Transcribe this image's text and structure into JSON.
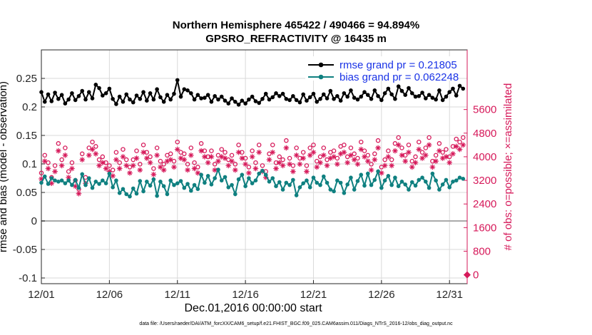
{
  "chart_data": {
    "type": "line",
    "title": "Northern Hemisphere 465422 / 490466 = 94.894%",
    "subtitle": "GPSRO_REFRACTIVITY @ 16435 m",
    "xlabel": "Dec.01,2016 00:00:00 start",
    "ylabel": "rmse and bias (model - observation)",
    "y2label": "# of obs: o=possible; ×=assimilated",
    "footer": "data file: /Users/raeder/DAI/ATM_forcXX/CAM6_setup/f.e21.FHIST_BGC.f09_025.CAM6assim.011/Diags_NTrS_2016-12/obs_diag_output.nc",
    "xlim": [
      0,
      31.3
    ],
    "ylim": [
      -0.11,
      0.3
    ],
    "y2lim": [
      -300,
      7620
    ],
    "xticks": [
      0,
      5,
      10,
      15,
      20,
      25,
      30
    ],
    "xtick_labels": [
      "12/01",
      "12/06",
      "12/11",
      "12/16",
      "12/21",
      "12/26",
      "12/31"
    ],
    "yticks": [
      -0.1,
      -0.05,
      0,
      0.05,
      0.1,
      0.15,
      0.2,
      0.25
    ],
    "ytick_labels": [
      "-0.1",
      "-0.05",
      "0",
      "0.05",
      "0.1",
      "0.15",
      "0.2",
      "0.25"
    ],
    "y2ticks": [
      0,
      800,
      1600,
      2400,
      3200,
      4000,
      4800,
      5600
    ],
    "y2tick_labels": [
      "0",
      "800",
      "1600",
      "2400",
      "3200",
      "4000",
      "4800",
      "5600"
    ],
    "grid": true,
    "legend_position": "top-right",
    "colors": {
      "rmse": "#000000",
      "bias": "#0f8080",
      "obs": "#d6195a",
      "zero_line": "#aaaaaa",
      "legend_text": "#1a33e6"
    },
    "series": [
      {
        "name": "rmse",
        "label": "rmse grand pr = 0.21805",
        "x": [
          0.0,
          0.25,
          0.5,
          0.75,
          1.0,
          1.25,
          1.5,
          1.75,
          2.0,
          2.25,
          2.5,
          2.75,
          3.0,
          3.25,
          3.5,
          3.75,
          4.0,
          4.25,
          4.5,
          4.75,
          5.0,
          5.25,
          5.5,
          5.75,
          6.0,
          6.25,
          6.5,
          6.75,
          7.0,
          7.25,
          7.5,
          7.75,
          8.0,
          8.25,
          8.5,
          8.75,
          9.0,
          9.25,
          9.5,
          9.75,
          10.0,
          10.25,
          10.5,
          10.75,
          11.0,
          11.25,
          11.5,
          11.75,
          12.0,
          12.25,
          12.5,
          12.75,
          13.0,
          13.25,
          13.5,
          13.75,
          14.0,
          14.25,
          14.5,
          14.75,
          15.0,
          15.25,
          15.5,
          15.75,
          16.0,
          16.25,
          16.5,
          16.75,
          17.0,
          17.25,
          17.5,
          17.75,
          18.0,
          18.25,
          18.5,
          18.75,
          19.0,
          19.25,
          19.5,
          19.75,
          20.0,
          20.25,
          20.5,
          20.75,
          21.0,
          21.25,
          21.5,
          21.75,
          22.0,
          22.25,
          22.5,
          22.75,
          23.0,
          23.25,
          23.5,
          23.75,
          24.0,
          24.25,
          24.5,
          24.75,
          25.0,
          25.25,
          25.5,
          25.75,
          26.0,
          26.25,
          26.5,
          26.75,
          27.0,
          27.25,
          27.5,
          27.75,
          28.0,
          28.25,
          28.5,
          28.75,
          29.0,
          29.25,
          29.5,
          29.75,
          30.0,
          30.25,
          30.5,
          30.75,
          31.0
        ],
        "values": [
          0.226,
          0.209,
          0.222,
          0.21,
          0.225,
          0.214,
          0.221,
          0.206,
          0.213,
          0.224,
          0.212,
          0.219,
          0.228,
          0.213,
          0.226,
          0.215,
          0.239,
          0.233,
          0.22,
          0.224,
          0.232,
          0.214,
          0.205,
          0.218,
          0.209,
          0.222,
          0.213,
          0.208,
          0.22,
          0.214,
          0.226,
          0.211,
          0.224,
          0.213,
          0.231,
          0.217,
          0.209,
          0.221,
          0.213,
          0.223,
          0.247,
          0.218,
          0.231,
          0.229,
          0.224,
          0.213,
          0.221,
          0.215,
          0.216,
          0.221,
          0.209,
          0.219,
          0.213,
          0.218,
          0.211,
          0.206,
          0.215,
          0.209,
          0.204,
          0.211,
          0.206,
          0.213,
          0.218,
          0.21,
          0.207,
          0.214,
          0.223,
          0.213,
          0.217,
          0.224,
          0.219,
          0.223,
          0.214,
          0.212,
          0.219,
          0.212,
          0.208,
          0.222,
          0.211,
          0.217,
          0.223,
          0.209,
          0.214,
          0.222,
          0.215,
          0.228,
          0.214,
          0.219,
          0.211,
          0.224,
          0.218,
          0.229,
          0.216,
          0.213,
          0.218,
          0.226,
          0.221,
          0.214,
          0.229,
          0.219,
          0.212,
          0.224,
          0.232,
          0.222,
          0.214,
          0.236,
          0.228,
          0.221,
          0.233,
          0.224,
          0.218,
          0.219,
          0.225,
          0.215,
          0.221,
          0.216,
          0.213,
          0.229,
          0.212,
          0.218,
          0.226,
          0.232,
          0.22,
          0.237,
          0.232
        ]
      },
      {
        "name": "bias",
        "label": "bias grand pr = 0.062248",
        "x": [
          0.0,
          0.25,
          0.5,
          0.75,
          1.0,
          1.25,
          1.5,
          1.75,
          2.0,
          2.25,
          2.5,
          2.75,
          3.0,
          3.25,
          3.5,
          3.75,
          4.0,
          4.25,
          4.5,
          4.75,
          5.0,
          5.25,
          5.5,
          5.75,
          6.0,
          6.25,
          6.5,
          6.75,
          7.0,
          7.25,
          7.5,
          7.75,
          8.0,
          8.25,
          8.5,
          8.75,
          9.0,
          9.25,
          9.5,
          9.75,
          10.0,
          10.25,
          10.5,
          10.75,
          11.0,
          11.25,
          11.5,
          11.75,
          12.0,
          12.25,
          12.5,
          12.75,
          13.0,
          13.25,
          13.5,
          13.75,
          14.0,
          14.25,
          14.5,
          14.75,
          15.0,
          15.25,
          15.5,
          15.75,
          16.0,
          16.25,
          16.5,
          16.75,
          17.0,
          17.25,
          17.5,
          17.75,
          18.0,
          18.25,
          18.5,
          18.75,
          19.0,
          19.25,
          19.5,
          19.75,
          20.0,
          20.25,
          20.5,
          20.75,
          21.0,
          21.25,
          21.5,
          21.75,
          22.0,
          22.25,
          22.5,
          22.75,
          23.0,
          23.25,
          23.5,
          23.75,
          24.0,
          24.25,
          24.5,
          24.75,
          25.0,
          25.25,
          25.5,
          25.75,
          26.0,
          26.25,
          26.5,
          26.75,
          27.0,
          27.25,
          27.5,
          27.75,
          28.0,
          28.25,
          28.5,
          28.75,
          29.0,
          29.25,
          29.5,
          29.75,
          30.0,
          30.25,
          30.5,
          30.75,
          31.0
        ],
        "values": [
          0.067,
          0.078,
          0.065,
          0.075,
          0.071,
          0.069,
          0.071,
          0.066,
          0.071,
          0.063,
          0.072,
          0.058,
          0.082,
          0.063,
          0.075,
          0.058,
          0.069,
          0.065,
          0.071,
          0.066,
          0.083,
          0.059,
          0.071,
          0.049,
          0.056,
          0.047,
          0.043,
          0.057,
          0.048,
          0.07,
          0.052,
          0.069,
          0.062,
          0.073,
          0.044,
          0.069,
          0.061,
          0.047,
          0.071,
          0.063,
          0.066,
          0.07,
          0.058,
          0.065,
          0.053,
          0.063,
          0.056,
          0.081,
          0.067,
          0.079,
          0.064,
          0.075,
          0.09,
          0.071,
          0.077,
          0.059,
          0.063,
          0.047,
          0.073,
          0.081,
          0.061,
          0.075,
          0.066,
          0.071,
          0.083,
          0.088,
          0.081,
          0.069,
          0.075,
          0.061,
          0.068,
          0.055,
          0.067,
          0.063,
          0.072,
          0.045,
          0.059,
          0.066,
          0.071,
          0.059,
          0.076,
          0.067,
          0.063,
          0.078,
          0.067,
          0.055,
          0.052,
          0.071,
          0.067,
          0.049,
          0.064,
          0.076,
          0.055,
          0.07,
          0.081,
          0.062,
          0.083,
          0.063,
          0.072,
          0.087,
          0.058,
          0.071,
          0.079,
          0.063,
          0.076,
          0.061,
          0.069,
          0.064,
          0.055,
          0.068,
          0.062,
          0.072,
          0.076,
          0.069,
          0.058,
          0.083,
          0.071,
          0.055,
          0.064,
          0.072,
          0.059,
          0.069,
          0.071,
          0.076,
          0.074
        ]
      },
      {
        "name": "nposs",
        "label": "possible (o)",
        "axis": "right",
        "x": [
          0.0,
          0.25,
          0.5,
          0.75,
          1.0,
          1.25,
          1.5,
          1.75,
          2.0,
          2.25,
          2.5,
          2.75,
          3.0,
          3.25,
          3.5,
          3.75,
          4.0,
          4.25,
          4.5,
          4.75,
          5.0,
          5.25,
          5.5,
          5.75,
          6.0,
          6.25,
          6.5,
          6.75,
          7.0,
          7.25,
          7.5,
          7.75,
          8.0,
          8.25,
          8.5,
          8.75,
          9.0,
          9.25,
          9.5,
          9.75,
          10.0,
          10.25,
          10.5,
          10.75,
          11.0,
          11.25,
          11.5,
          11.75,
          12.0,
          12.25,
          12.5,
          12.75,
          13.0,
          13.25,
          13.5,
          13.75,
          14.0,
          14.25,
          14.5,
          14.75,
          15.0,
          15.25,
          15.5,
          15.75,
          16.0,
          16.25,
          16.5,
          16.75,
          17.0,
          17.25,
          17.5,
          17.75,
          18.0,
          18.25,
          18.5,
          18.75,
          19.0,
          19.25,
          19.5,
          19.75,
          20.0,
          20.25,
          20.5,
          20.75,
          21.0,
          21.25,
          21.5,
          21.75,
          22.0,
          22.25,
          22.5,
          22.75,
          23.0,
          23.25,
          23.5,
          23.75,
          24.0,
          24.25,
          24.5,
          24.75,
          25.0,
          25.25,
          25.5,
          25.75,
          26.0,
          26.25,
          26.5,
          26.75,
          27.0,
          27.25,
          27.5,
          27.75,
          28.0,
          28.25,
          28.5,
          28.75,
          29.0,
          29.25,
          29.5,
          29.75,
          30.0,
          30.25,
          30.5,
          30.75,
          31.0
        ],
        "values": [
          3450,
          4050,
          3800,
          3300,
          3700,
          4450,
          3900,
          4300,
          3500,
          3800,
          3200,
          2900,
          4100,
          3300,
          4300,
          4500,
          4350,
          3900,
          4000,
          3800,
          3700,
          3550,
          4150,
          3800,
          4250,
          3900,
          3650,
          3900,
          4200,
          3750,
          4400,
          4150,
          4000,
          3600,
          4300,
          3850,
          3750,
          4050,
          4100,
          3850,
          4500,
          4150,
          4100,
          3750,
          4300,
          3800,
          3650,
          4450,
          4200,
          4000,
          4200,
          3750,
          4050,
          4250,
          4150,
          3900,
          4050,
          3750,
          4400,
          4150,
          3950,
          3650,
          4200,
          3800,
          4400,
          3700,
          3500,
          4100,
          4400,
          3800,
          4000,
          3900,
          4550,
          3950,
          3700,
          4300,
          3950,
          4150,
          3700,
          4300,
          4400,
          3850,
          4000,
          4300,
          3900,
          4150,
          4200,
          3950,
          4350,
          4400,
          4000,
          4300,
          4100,
          3950,
          4500,
          4200,
          4050,
          3750,
          4100,
          4550,
          3650,
          3900,
          4200,
          3900,
          4450,
          4650,
          4300,
          4050,
          4400,
          3850,
          4000,
          4500,
          4150,
          4300,
          4650,
          3850,
          4050,
          4450,
          4150,
          4250,
          4000,
          4350,
          4600,
          4500,
          4650
        ]
      },
      {
        "name": "nused",
        "label": "assimilated (×)",
        "axis": "right",
        "x": [
          0.0,
          0.25,
          0.5,
          0.75,
          1.0,
          1.25,
          1.5,
          1.75,
          2.0,
          2.25,
          2.5,
          2.75,
          3.0,
          3.25,
          3.5,
          3.75,
          4.0,
          4.25,
          4.5,
          4.75,
          5.0,
          5.25,
          5.5,
          5.75,
          6.0,
          6.25,
          6.5,
          6.75,
          7.0,
          7.25,
          7.5,
          7.75,
          8.0,
          8.25,
          8.5,
          8.75,
          9.0,
          9.25,
          9.5,
          9.75,
          10.0,
          10.25,
          10.5,
          10.75,
          11.0,
          11.25,
          11.5,
          11.75,
          12.0,
          12.25,
          12.5,
          12.75,
          13.0,
          13.25,
          13.5,
          13.75,
          14.0,
          14.25,
          14.5,
          14.75,
          15.0,
          15.25,
          15.5,
          15.75,
          16.0,
          16.25,
          16.5,
          16.75,
          17.0,
          17.25,
          17.5,
          17.75,
          18.0,
          18.25,
          18.5,
          18.75,
          19.0,
          19.25,
          19.5,
          19.75,
          20.0,
          20.25,
          20.5,
          20.75,
          21.0,
          21.25,
          21.5,
          21.75,
          22.0,
          22.25,
          22.5,
          22.75,
          23.0,
          23.25,
          23.5,
          23.75,
          24.0,
          24.25,
          24.5,
          24.75,
          25.0,
          25.25,
          25.5,
          25.75,
          26.0,
          26.25,
          26.5,
          26.75,
          27.0,
          27.25,
          27.5,
          27.75,
          28.0,
          28.25,
          28.5,
          28.75,
          29.0,
          29.25,
          29.5,
          29.75,
          30.0,
          30.25,
          30.5,
          30.75,
          31.0
        ],
        "values": [
          3250,
          3850,
          3600,
          3100,
          3500,
          4200,
          3700,
          4050,
          3300,
          3600,
          3000,
          2750,
          3900,
          3100,
          4050,
          4250,
          4100,
          3700,
          3800,
          3600,
          3500,
          3350,
          3900,
          3600,
          4000,
          3700,
          3450,
          3700,
          3950,
          3550,
          4150,
          3950,
          3800,
          3400,
          4050,
          3650,
          3550,
          3850,
          3900,
          3650,
          4250,
          3950,
          3900,
          3550,
          4050,
          3600,
          3450,
          4200,
          4000,
          3800,
          4000,
          3550,
          3850,
          4000,
          3950,
          3700,
          3850,
          3550,
          4150,
          3950,
          3750,
          3450,
          4000,
          3600,
          4150,
          3500,
          3300,
          3900,
          4150,
          3600,
          3800,
          3700,
          4300,
          3750,
          3500,
          4050,
          3750,
          3950,
          3500,
          4050,
          4150,
          3650,
          3800,
          4050,
          3700,
          3950,
          4000,
          3750,
          4100,
          4150,
          3800,
          4050,
          3900,
          3750,
          4250,
          4000,
          3850,
          3550,
          3900,
          4300,
          3450,
          3700,
          4000,
          3700,
          4200,
          4400,
          4050,
          3850,
          4150,
          3650,
          3800,
          4250,
          3950,
          4050,
          4400,
          3650,
          3850,
          4200,
          3950,
          4000,
          3800,
          4100,
          4350,
          4250,
          4400
        ]
      },
      {
        "name": "nposs_right_edge",
        "label": "possible at edge",
        "axis": "right",
        "x": [
          31.3
        ],
        "values": [
          0
        ]
      }
    ]
  }
}
